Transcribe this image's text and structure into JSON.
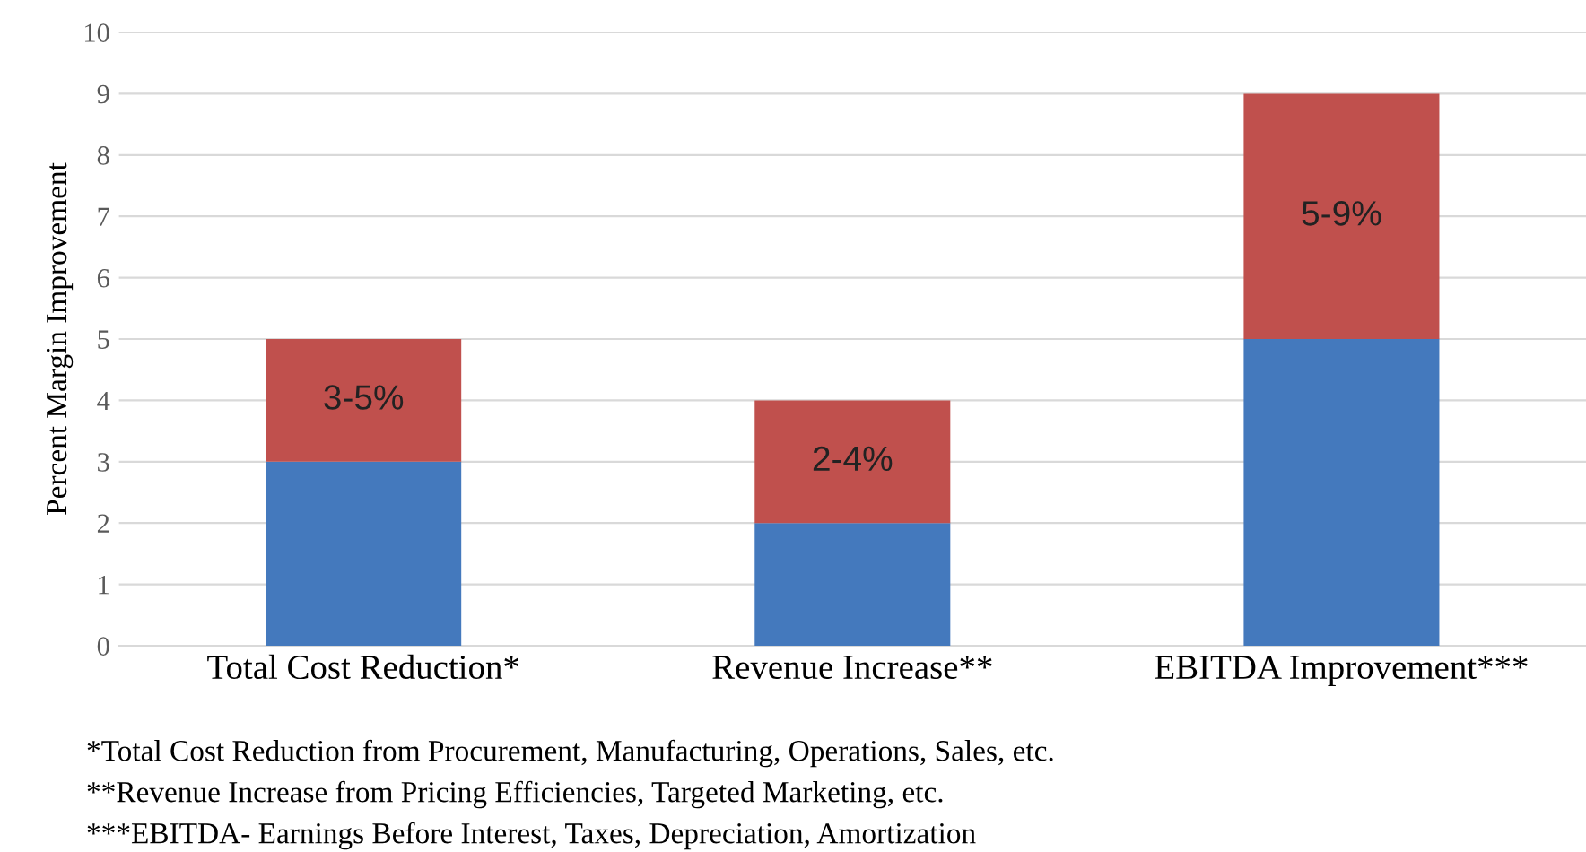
{
  "chart_data": {
    "type": "bar",
    "stacked": true,
    "ylabel": "Percent Margin Improvement",
    "categories": [
      "Total Cost Reduction*",
      "Revenue Increase**",
      "EBITDA Improvement***"
    ],
    "series": [
      {
        "color": "#4479bd",
        "values": [
          3,
          2,
          5
        ]
      },
      {
        "color": "#c0504d",
        "values": [
          2,
          2,
          4
        ]
      }
    ],
    "ylim": [
      0,
      10
    ],
    "yticks": [
      0,
      1,
      2,
      3,
      4,
      5,
      6,
      7,
      8,
      9,
      10
    ],
    "grid": "y",
    "legend": false,
    "annotations": [
      "3-5%",
      "2-4%",
      "5-9%",
      "*Total Cost Reduction from Procurement, Manufacturing, Operations, Sales, etc.",
      "**Revenue Increase from Pricing Efficiencies, Targeted Marketing, etc.",
      "***EBITDA- Earnings Before Interest, Taxes, Depreciation, Amortization"
    ]
  }
}
